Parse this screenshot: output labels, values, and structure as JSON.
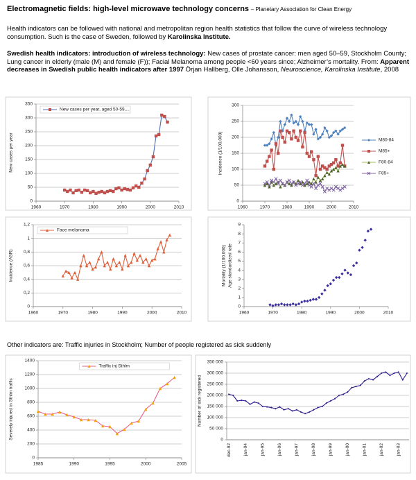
{
  "header": {
    "title": "Electromagnetic fields: high-level microwave technology concerns",
    "source": "– Planetary Association for Clean Energy"
  },
  "intro": {
    "text": "Health indicators can be followed with national and metropolitan region health statistics that follow the curve of wireless technology consumption. Such is the case of Sweden, followed by",
    "emphasis": "Karolinska Institute."
  },
  "summary": {
    "heading": "Swedish health indicators: introduction of wireless technology:",
    "text": "New cases of prostate cancer: men aged 50–59, Stockholm County; Lung cancer in elderly (male (M) and female (F)); Facial Melanoma among people <60 years since; Alzheimer’s mortality. From:",
    "reference_title": "Apparent decreases in Swedish public health indicators after 1997",
    "authors": "Örjan Hallberg, Olle Johansson,",
    "journal": "Neuroscience, Karolinska Institute",
    "year": ", 2008"
  },
  "other": "Other indicators are: Traffic injuries in Stockholm; Number of people registered as sick suddenly",
  "chart_data": [
    {
      "type": "line",
      "ylabel": "New cases per year",
      "xlim": [
        1960,
        2010
      ],
      "xticks": [
        1960,
        1970,
        1980,
        1990,
        2000,
        2010
      ],
      "ylim": [
        0,
        350
      ],
      "yticks": [
        0,
        50,
        100,
        150,
        200,
        250,
        300,
        350
      ],
      "grid": true,
      "legend": "upper left",
      "x": [
        1970,
        1971,
        1972,
        1973,
        1974,
        1975,
        1976,
        1977,
        1978,
        1979,
        1980,
        1981,
        1982,
        1983,
        1984,
        1985,
        1986,
        1987,
        1988,
        1989,
        1990,
        1991,
        1992,
        1993,
        1994,
        1995,
        1996,
        1997,
        1998,
        1999,
        2000,
        2001,
        2002,
        2003,
        2004,
        2005,
        2006
      ],
      "series": [
        {
          "name": "New cases per year, aged 50-59,...",
          "color": "#c0504d",
          "line_color": "#4a6fb5",
          "marker": "square",
          "values": [
            40,
            35,
            40,
            30,
            38,
            40,
            32,
            40,
            38,
            30,
            35,
            28,
            32,
            35,
            30,
            35,
            38,
            35,
            45,
            48,
            40,
            45,
            42,
            40,
            48,
            55,
            50,
            65,
            80,
            110,
            130,
            160,
            235,
            240,
            310,
            305,
            285
          ]
        }
      ]
    },
    {
      "type": "line",
      "ylabel": "Incidence (1/100,000)",
      "xlim": [
        1960,
        2010
      ],
      "xticks": [
        1960,
        1970,
        1980,
        1990,
        2000,
        2010
      ],
      "ylim": [
        0,
        300
      ],
      "yticks": [
        0,
        50,
        100,
        150,
        200,
        250,
        300
      ],
      "grid": true,
      "legend": "right",
      "x": [
        1970,
        1971,
        1972,
        1973,
        1974,
        1975,
        1976,
        1977,
        1978,
        1979,
        1980,
        1981,
        1982,
        1983,
        1984,
        1985,
        1986,
        1987,
        1988,
        1989,
        1990,
        1991,
        1992,
        1993,
        1994,
        1995,
        1996,
        1997,
        1998,
        1999,
        2000,
        2001,
        2002,
        2003,
        2004,
        2005,
        2006
      ],
      "series": [
        {
          "name": "M80-84",
          "color": "#4f81bd",
          "marker": "diamond",
          "values": [
            175,
            175,
            180,
            195,
            215,
            175,
            200,
            250,
            220,
            240,
            260,
            250,
            270,
            245,
            250,
            240,
            265,
            250,
            220,
            245,
            240,
            240,
            210,
            225,
            195,
            200,
            210,
            230,
            220,
            200,
            205,
            215,
            220,
            210,
            220,
            225,
            230
          ]
        },
        {
          "name": "M85+",
          "color": "#c0504d",
          "marker": "square",
          "values": [
            110,
            125,
            140,
            160,
            100,
            180,
            150,
            220,
            200,
            185,
            220,
            215,
            195,
            220,
            200,
            190,
            220,
            170,
            215,
            150,
            140,
            155,
            130,
            80,
            140,
            100,
            110,
            105,
            100,
            110,
            115,
            120,
            130,
            110,
            120,
            175,
            110
          ]
        },
        {
          "name": "F80-84",
          "color": "#4f6228",
          "line_color": "#9bbb59",
          "marker": "triangle",
          "values": [
            50,
            55,
            45,
            60,
            50,
            55,
            60,
            45,
            55,
            50,
            60,
            55,
            50,
            60,
            55,
            65,
            55,
            60,
            50,
            55,
            60,
            55,
            70,
            60,
            75,
            65,
            70,
            80,
            90,
            85,
            95,
            100,
            105,
            95,
            110,
            115,
            110
          ]
        },
        {
          "name": "F85+",
          "color": "#8064a2",
          "marker": "x",
          "values": [
            55,
            60,
            50,
            65,
            60,
            70,
            55,
            65,
            55,
            50,
            60,
            65,
            55,
            60,
            50,
            55,
            60,
            50,
            55,
            65,
            50,
            45,
            55,
            40,
            50,
            55,
            45,
            30,
            40,
            35,
            40,
            35,
            45,
            40,
            35,
            40,
            45
          ]
        }
      ]
    },
    {
      "type": "line",
      "ylabel": "Incidence (ASR)",
      "xlim": [
        1960,
        2010
      ],
      "xticks": [
        1960,
        1970,
        1980,
        1990,
        2000,
        2010
      ],
      "ylim": [
        0,
        1.2
      ],
      "yticks": [
        0,
        {
          "value": 0.2,
          "label": "0,2"
        },
        {
          "value": 0.4,
          "label": "0,4"
        },
        {
          "value": 0.6,
          "label": "0,6"
        },
        {
          "value": 0.8,
          "label": "0,8"
        },
        1,
        {
          "value": 1.2,
          "label": "1,2"
        }
      ],
      "grid": true,
      "legend": "upper left",
      "x": [
        1970,
        1971,
        1972,
        1973,
        1974,
        1975,
        1976,
        1977,
        1978,
        1979,
        1980,
        1981,
        1982,
        1983,
        1984,
        1985,
        1986,
        1987,
        1988,
        1989,
        1990,
        1991,
        1992,
        1993,
        1994,
        1995,
        1996,
        1997,
        1998,
        1999,
        2000,
        2001,
        2002,
        2003,
        2004,
        2005,
        2006
      ],
      "series": [
        {
          "name": "Face melanoma",
          "color": "#e0603a",
          "marker": "triangle",
          "values": [
            0.45,
            0.52,
            0.5,
            0.42,
            0.5,
            0.4,
            0.6,
            0.75,
            0.6,
            0.65,
            0.55,
            0.58,
            0.7,
            0.8,
            0.6,
            0.65,
            0.55,
            0.7,
            0.6,
            0.65,
            0.55,
            0.75,
            0.6,
            0.65,
            0.78,
            0.68,
            0.75,
            0.65,
            0.7,
            0.6,
            0.68,
            0.7,
            0.85,
            0.95,
            0.8,
            0.98,
            1.05
          ]
        }
      ]
    },
    {
      "type": "scatter",
      "ylabel": [
        "Mortality (1/100,000)",
        "Age standardized rate"
      ],
      "xlim": [
        1960,
        2010
      ],
      "xticks": [
        1960,
        1970,
        1980,
        1990,
        2000,
        2010
      ],
      "ylim": [
        0,
        9
      ],
      "yticks": [
        0,
        1,
        2,
        3,
        4,
        5,
        6,
        7,
        8,
        9
      ],
      "grid": false,
      "x": [
        1969,
        1970,
        1971,
        1972,
        1973,
        1974,
        1975,
        1976,
        1977,
        1978,
        1979,
        1980,
        1981,
        1982,
        1983,
        1984,
        1985,
        1986,
        1987,
        1988,
        1989,
        1990,
        1991,
        1992,
        1993,
        1994,
        1995,
        1996,
        1997,
        1998,
        1999,
        2000,
        2001,
        2002,
        2003,
        2004
      ],
      "values": [
        0.2,
        0.1,
        0.2,
        0.2,
        0.3,
        0.2,
        0.2,
        0.2,
        0.3,
        0.2,
        0.3,
        0.5,
        0.6,
        0.6,
        0.7,
        0.8,
        0.8,
        1.0,
        1.4,
        1.8,
        2.3,
        2.5,
        2.9,
        3.2,
        3.2,
        3.6,
        4.0,
        3.7,
        3.5,
        4.5,
        4.8,
        6.2,
        6.5,
        7.3,
        8.3,
        8.5
      ],
      "color": "#3b2ea0",
      "marker": "diamond"
    },
    {
      "type": "line",
      "ylabel": "Severely injured in Sthlm traffic",
      "xlim": [
        1985,
        2005
      ],
      "xticks": [
        1985,
        1990,
        1995,
        2000,
        2005
      ],
      "ylim": [
        0,
        1400
      ],
      "yticks": [
        0,
        200,
        400,
        600,
        800,
        1000,
        1200,
        1400
      ],
      "grid": true,
      "legend": "upper center",
      "x": [
        1985,
        1986,
        1987,
        1988,
        1989,
        1990,
        1991,
        1992,
        1993,
        1994,
        1995,
        1996,
        1997,
        1998,
        1999,
        2000,
        2001,
        2002,
        2003,
        2004
      ],
      "series": [
        {
          "name": "Traffic inj Sthlm",
          "color": "#f4a300",
          "line_color": "#e85c8a",
          "marker": "triangle",
          "values": [
            670,
            630,
            630,
            660,
            620,
            590,
            550,
            550,
            540,
            460,
            450,
            350,
            410,
            500,
            530,
            700,
            790,
            1000,
            1070,
            1160
          ]
        }
      ]
    },
    {
      "type": "line",
      "ylabel": "Number of sick registered",
      "ylim": [
        0,
        350000
      ],
      "yticks": [
        0,
        {
          "value": 50000,
          "label": "50 000"
        },
        {
          "value": 100000,
          "label": "100 000"
        },
        {
          "value": 150000,
          "label": "150 000"
        },
        {
          "value": 200000,
          "label": "200 000"
        },
        {
          "value": 250000,
          "label": "250 000"
        },
        {
          "value": 300000,
          "label": "300 000"
        },
        {
          "value": 350000,
          "label": "350 000"
        }
      ],
      "grid": true,
      "categories": [
        "dec-92",
        null,
        null,
        null,
        "jan-94",
        null,
        null,
        null,
        "jan-95",
        null,
        null,
        null,
        "jan-96",
        null,
        null,
        null,
        "jan-97",
        null,
        null,
        null,
        "jan-98",
        null,
        null,
        null,
        "jan-99",
        null,
        null,
        null,
        "jan-00",
        null,
        null,
        null,
        "jan-01",
        null,
        null,
        null,
        "jan-02",
        null,
        null,
        null,
        "jan-03",
        null,
        null
      ],
      "series": [
        {
          "color": "#2e1a8c",
          "marker": "diamond",
          "values": [
            205000,
            200000,
            175000,
            178000,
            175000,
            160000,
            170000,
            165000,
            150000,
            148000,
            145000,
            140000,
            148000,
            135000,
            140000,
            130000,
            135000,
            125000,
            118000,
            125000,
            135000,
            145000,
            150000,
            165000,
            175000,
            185000,
            200000,
            205000,
            215000,
            235000,
            240000,
            245000,
            265000,
            275000,
            270000,
            285000,
            300000,
            305000,
            290000,
            300000,
            305000,
            270000,
            300000
          ]
        }
      ]
    }
  ]
}
